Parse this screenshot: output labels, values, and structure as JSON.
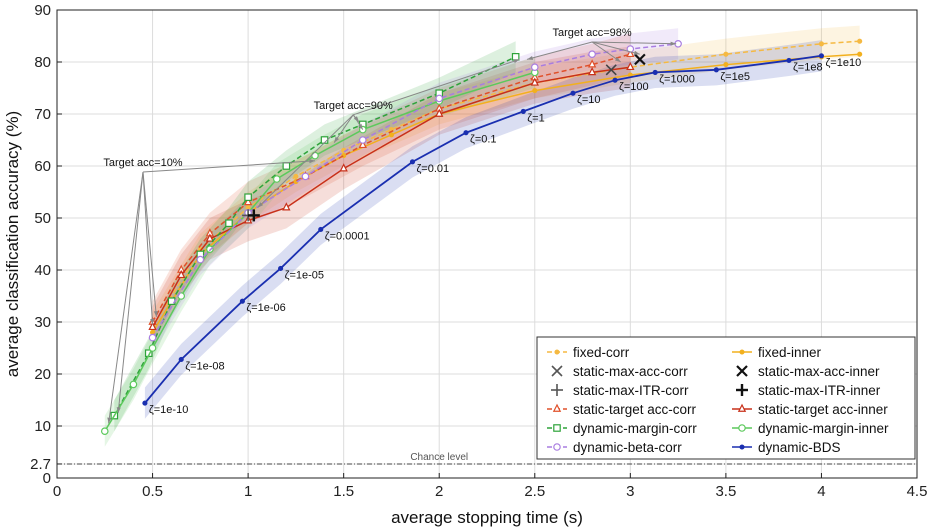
{
  "chart_data": {
    "type": "line",
    "xlabel": "average stopping time (s)",
    "ylabel": "average classification accuracy (%)",
    "xlim": [
      0,
      4.5
    ],
    "ylim": [
      0,
      90
    ],
    "xticks": [
      0,
      0.5,
      1,
      1.5,
      2,
      2.5,
      3,
      3.5,
      4,
      4.5
    ],
    "xtick_labels": [
      "0",
      "0.5",
      "1",
      "1.5",
      "2",
      "2.5",
      "3",
      "3.5",
      "4",
      "4.5"
    ],
    "yticks": [
      0,
      2.7,
      10,
      20,
      30,
      40,
      50,
      60,
      70,
      80,
      90
    ],
    "ytick_labels": [
      "0",
      "2.7",
      "10",
      "20",
      "30",
      "40",
      "50",
      "60",
      "70",
      "80",
      "90"
    ],
    "grid": true,
    "chance_level": {
      "value": 2.7,
      "label": "Chance level"
    },
    "series": [
      {
        "name": "fixed-corr",
        "color": "#f5b942",
        "dash": true,
        "marker": "dot",
        "x": [
          0.5,
          0.75,
          1.0,
          1.25,
          1.5,
          1.75,
          2.0,
          2.5,
          3.0,
          3.5,
          4.0,
          4.2
        ],
        "y": [
          29,
          44,
          52,
          58,
          63,
          67,
          71,
          76,
          79,
          81.5,
          83.5,
          84
        ],
        "band": 3
      },
      {
        "name": "fixed-inner",
        "color": "#f2b01e",
        "dash": false,
        "marker": "dot",
        "x": [
          0.5,
          0.75,
          1.0,
          1.25,
          1.5,
          1.75,
          2.0,
          2.5,
          3.0,
          3.5,
          4.0,
          4.2
        ],
        "y": [
          28,
          43,
          51,
          57,
          62,
          66,
          70,
          74.5,
          77.5,
          79.5,
          81,
          81.5
        ]
      },
      {
        "name": "static-target acc-corr",
        "color": "#e0502a",
        "dash": true,
        "marker": "triangle",
        "x": [
          0.5,
          0.65,
          0.8,
          1.0,
          1.3,
          1.6,
          2.0,
          2.5,
          2.8,
          3.0
        ],
        "y": [
          30,
          40,
          47,
          53,
          58,
          64,
          71,
          77,
          79.5,
          81.5
        ],
        "band": 4
      },
      {
        "name": "static-target acc-inner",
        "color": "#c8301a",
        "dash": false,
        "marker": "triangle",
        "x": [
          0.5,
          0.65,
          0.8,
          1.0,
          1.2,
          1.5,
          2.0,
          2.5,
          2.8,
          3.0
        ],
        "y": [
          29,
          39,
          46,
          49.5,
          52,
          59.5,
          70,
          76,
          78,
          79
        ],
        "band": 4
      },
      {
        "name": "dynamic-margin-corr",
        "color": "#2ea33a",
        "dash": true,
        "marker": "square",
        "x": [
          0.3,
          0.48,
          0.6,
          0.75,
          0.9,
          1.0,
          1.2,
          1.4,
          1.6,
          2.0,
          2.4
        ],
        "y": [
          12,
          24,
          34,
          43,
          49,
          54,
          60,
          65,
          68,
          74,
          81
        ],
        "band": 3
      },
      {
        "name": "dynamic-margin-inner",
        "color": "#5cc95c",
        "dash": false,
        "marker": "circle-open",
        "x": [
          0.25,
          0.4,
          0.5,
          0.65,
          0.8,
          1.0,
          1.15,
          1.35,
          1.6,
          2.0,
          2.5
        ],
        "y": [
          9,
          18,
          25,
          35,
          44,
          51,
          57.5,
          62,
          67,
          72.5,
          78
        ],
        "band": 3
      },
      {
        "name": "dynamic-beta-corr",
        "color": "#a97de0",
        "dash": true,
        "marker": "circle-open",
        "x": [
          0.5,
          0.75,
          1.0,
          1.3,
          1.6,
          2.0,
          2.5,
          2.8,
          3.0,
          3.25
        ],
        "y": [
          27,
          42,
          51,
          58,
          65,
          73,
          79,
          81.5,
          82.5,
          83.5
        ],
        "band": 3
      },
      {
        "name": "dynamic-BDS",
        "color": "#1a2fb0",
        "dash": false,
        "marker": "dot",
        "x": [
          0.46,
          0.65,
          0.97,
          1.17,
          1.38,
          1.86,
          2.14,
          2.44,
          2.7,
          2.92,
          3.13,
          3.45,
          3.83,
          4.0
        ],
        "y": [
          14.4,
          22.8,
          34,
          40.3,
          47.8,
          60.8,
          66.4,
          70.5,
          74,
          76.5,
          78,
          78.5,
          80.3,
          81.2
        ],
        "band": 3
      }
    ],
    "markers_single": [
      {
        "name": "static-max-acc-corr",
        "symbol": "x",
        "x": 2.9,
        "y": 78.5,
        "color": "#444444"
      },
      {
        "name": "static-max-acc-inner",
        "symbol": "x-bold",
        "x": 3.05,
        "y": 80.5,
        "color": "#111111"
      },
      {
        "name": "static-max-ITR-corr",
        "symbol": "plus",
        "x": 1.0,
        "y": 50.5,
        "color": "#555555"
      },
      {
        "name": "static-max-ITR-inner",
        "symbol": "plus-bold",
        "x": 1.03,
        "y": 50.5,
        "color": "#111111"
      }
    ],
    "bds_labels": [
      {
        "text": "ζ=1e-10",
        "x": 0.46,
        "y": 14.4
      },
      {
        "text": "ζ=1e-08",
        "x": 0.65,
        "y": 22.8
      },
      {
        "text": "ζ=1e-06",
        "x": 0.97,
        "y": 34
      },
      {
        "text": "ζ=1e-05",
        "x": 1.17,
        "y": 40.3
      },
      {
        "text": "ζ=0.0001",
        "x": 1.38,
        "y": 47.8
      },
      {
        "text": "ζ=0.01",
        "x": 1.86,
        "y": 60.8
      },
      {
        "text": "ζ=0.1",
        "x": 2.14,
        "y": 66.4
      },
      {
        "text": "ζ=1",
        "x": 2.44,
        "y": 70.5
      },
      {
        "text": "ζ=10",
        "x": 2.7,
        "y": 74
      },
      {
        "text": "ζ=100",
        "x": 2.92,
        "y": 76.5
      },
      {
        "text": "ζ=1000",
        "x": 3.13,
        "y": 78
      },
      {
        "text": "ζ=1e5",
        "x": 3.45,
        "y": 78.5
      },
      {
        "text": "ζ=1e8",
        "x": 3.83,
        "y": 80.3
      },
      {
        "text": "ζ=1e10",
        "x": 4.0,
        "y": 81.2
      }
    ],
    "target_annotations": [
      {
        "text": "Target acc=10%",
        "anchor": [
          0.45,
          60
        ],
        "targets": [
          [
            0.27,
            10.5
          ],
          [
            0.32,
            12.5
          ],
          [
            0.5,
            29.5
          ],
          [
            0.52,
            31
          ],
          [
            1.35,
            61
          ]
        ]
      },
      {
        "text": "Target acc=90%",
        "anchor": [
          1.55,
          71
        ],
        "targets": [
          [
            1.05,
            52
          ],
          [
            1.45,
            64.5
          ],
          [
            1.6,
            67
          ],
          [
            1.58,
            68.5
          ],
          [
            2.42,
            80.5
          ]
        ]
      },
      {
        "text": "Target acc=98%",
        "anchor": [
          2.8,
          85
        ],
        "targets": [
          [
            2.46,
            80.5
          ],
          [
            2.95,
            80
          ],
          [
            3.05,
            81.5
          ],
          [
            3.24,
            83.5
          ]
        ]
      }
    ],
    "legend": {
      "placement": "bottom-right",
      "entries": [
        {
          "label": "fixed-corr",
          "series": "fixed-corr"
        },
        {
          "label": "fixed-inner",
          "series": "fixed-inner"
        },
        {
          "label": "static-max-acc-corr",
          "symbol": "x"
        },
        {
          "label": "static-max-acc-inner",
          "symbol": "x-bold"
        },
        {
          "label": "static-max-ITR-corr",
          "symbol": "plus"
        },
        {
          "label": "static-max-ITR-inner",
          "symbol": "plus-bold"
        },
        {
          "label": "static-target acc-corr",
          "series": "static-target acc-corr"
        },
        {
          "label": "static-target acc-inner",
          "series": "static-target acc-inner"
        },
        {
          "label": "dynamic-margin-corr",
          "series": "dynamic-margin-corr"
        },
        {
          "label": "dynamic-margin-inner",
          "series": "dynamic-margin-inner"
        },
        {
          "label": "dynamic-beta-corr",
          "series": "dynamic-beta-corr"
        },
        {
          "label": "dynamic-BDS",
          "series": "dynamic-BDS"
        }
      ]
    }
  }
}
